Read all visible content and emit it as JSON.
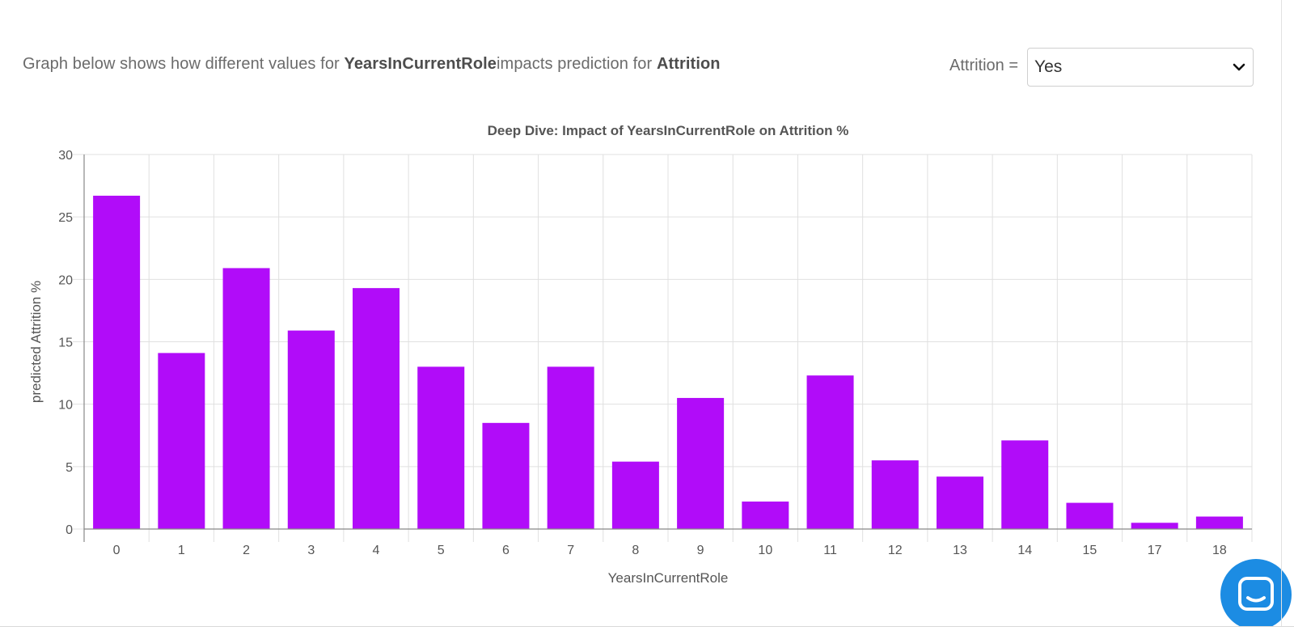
{
  "intro": {
    "prefix": "Graph below shows how different values for ",
    "feature": "YearsInCurrentRole",
    "middle": "impacts prediction for ",
    "target": "Attrition"
  },
  "filter": {
    "label": "Attrition =",
    "selected": "Yes",
    "icon": "chevron-down-icon"
  },
  "chat": {
    "icon": "chat-bubble-icon",
    "color": "#1c8ce3"
  },
  "colors": {
    "bar": "#b10cf9",
    "grid": "#e0e0e0",
    "axis": "#888888",
    "text": "#555555"
  },
  "chart_data": {
    "type": "bar",
    "title": "Deep Dive: Impact of YearsInCurrentRole on Attrition %",
    "xlabel": "YearsInCurrentRole",
    "ylabel": "predicted Attrition %",
    "categories": [
      "0",
      "1",
      "2",
      "3",
      "4",
      "5",
      "6",
      "7",
      "8",
      "9",
      "10",
      "11",
      "12",
      "13",
      "14",
      "15",
      "17",
      "18"
    ],
    "values": [
      26.7,
      14.1,
      20.9,
      15.9,
      19.3,
      13.0,
      8.5,
      13.0,
      5.4,
      10.5,
      2.2,
      12.3,
      5.5,
      4.2,
      7.1,
      2.1,
      0.5,
      1.0
    ],
    "ylim": [
      0,
      30
    ],
    "yticks": [
      0,
      5,
      10,
      15,
      20,
      25,
      30
    ],
    "grid": true,
    "legend": "none"
  }
}
